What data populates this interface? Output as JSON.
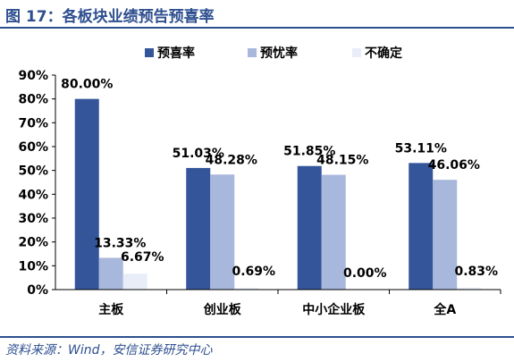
{
  "figure": {
    "title": "图 17：各板块业绩预告预喜率",
    "source": "资料来源：Wind，安信证券研究中心"
  },
  "colors": {
    "title": "#2e4f8f",
    "rule": "#2e4f8f",
    "series": [
      "#34559a",
      "#a8b7dc",
      "#e8edf8"
    ]
  },
  "chart_data": {
    "type": "bar",
    "categories": [
      "主板",
      "创业板",
      "中小企业板",
      "全A"
    ],
    "series": [
      {
        "name": "预喜率",
        "values": [
          80.0,
          51.03,
          51.85,
          53.11
        ]
      },
      {
        "name": "预忧率",
        "values": [
          13.33,
          48.28,
          48.15,
          46.06
        ]
      },
      {
        "name": "不确定",
        "values": [
          6.67,
          0.69,
          0.0,
          0.83
        ]
      }
    ],
    "value_labels": [
      [
        "80.00%",
        "51.03%",
        "51.85%",
        "53.11%"
      ],
      [
        "13.33%",
        "48.28%",
        "48.15%",
        "46.06%"
      ],
      [
        "6.67%",
        "0.69%",
        "0.00%",
        "0.83%"
      ]
    ],
    "yticks": [
      "0%",
      "10%",
      "20%",
      "30%",
      "40%",
      "50%",
      "60%",
      "70%",
      "80%",
      "90%"
    ],
    "ylim": [
      0,
      90
    ],
    "ytick_step": 10,
    "legend_position": "top-right",
    "grid": false
  }
}
